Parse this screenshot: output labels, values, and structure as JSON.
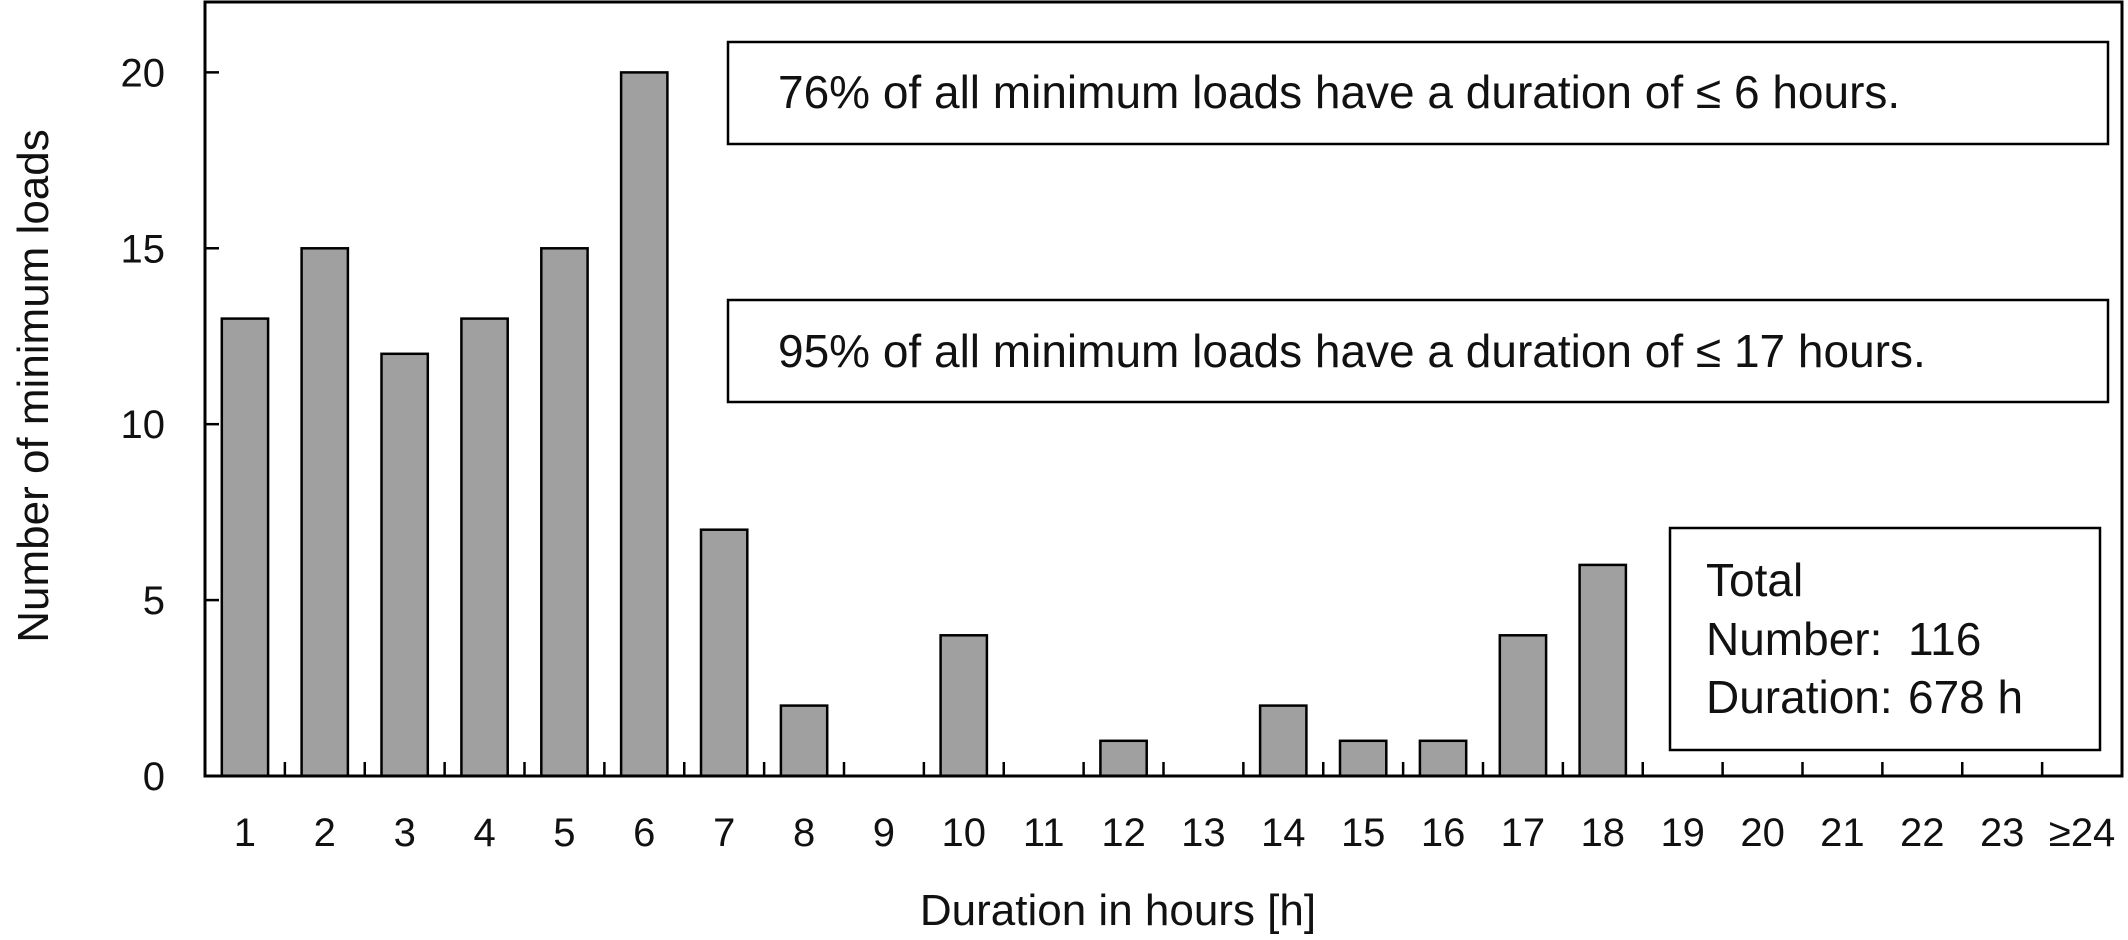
{
  "chart_data": {
    "type": "bar",
    "title": "",
    "xlabel": "Duration in hours [h]",
    "ylabel": "Number of minimum loads",
    "categories": [
      "1",
      "2",
      "3",
      "4",
      "5",
      "6",
      "7",
      "8",
      "9",
      "10",
      "11",
      "12",
      "13",
      "14",
      "15",
      "16",
      "17",
      "18",
      "19",
      "20",
      "21",
      "22",
      "23",
      "≥24"
    ],
    "values": [
      13,
      15,
      12,
      13,
      15,
      20,
      7,
      2,
      0,
      4,
      0,
      1,
      0,
      2,
      1,
      1,
      4,
      6,
      0,
      0,
      0,
      0,
      0,
      0
    ],
    "ylim": [
      0,
      22
    ],
    "yticks": [
      0,
      5,
      10,
      15,
      20
    ],
    "grid": false,
    "legend": "none",
    "bar_color": "#a0a0a0",
    "annotations": [
      "76% of all minimum loads have a duration of ≤ 6 hours.",
      "95% of all minimum loads have a duration of ≤ 17 hours."
    ],
    "total_box": {
      "heading": "Total",
      "number_label": "Number:",
      "number_value": "116",
      "duration_label": "Duration:",
      "duration_value": "678 h"
    }
  }
}
